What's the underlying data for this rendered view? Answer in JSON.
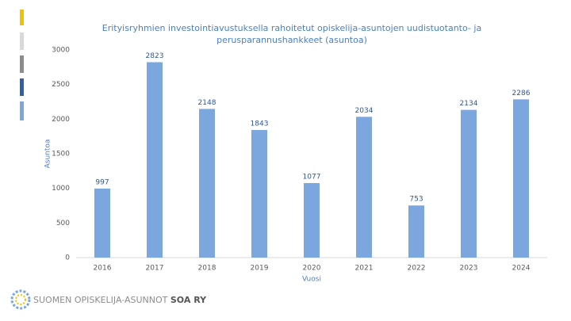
{
  "chart_data": {
    "type": "bar",
    "title": [
      "Erityisryhmien investointiavustuksella rahoitetut opiskelija-asuntojen uudistuotanto- ja",
      "perusparannushankkeet (asuntoa)"
    ],
    "y_label": "Asuntoa",
    "x_label": "Vuosi",
    "categories": [
      "2016",
      "2017",
      "2018",
      "2019",
      "2020",
      "2021",
      "2022",
      "2023",
      "2024"
    ],
    "values": [
      997,
      2823,
      2148,
      1843,
      1077,
      2034,
      753,
      2134,
      2286
    ],
    "color": "#7ba7de",
    "ylim": [
      0,
      3000
    ],
    "yticks": [
      0,
      500,
      1000,
      1500,
      2000,
      2500,
      3000
    ],
    "grid": false
  },
  "footer": {
    "brand": "SUOMEN OPISKELIJA-ASUNNOT",
    "brand_bold": "SOA RY"
  }
}
